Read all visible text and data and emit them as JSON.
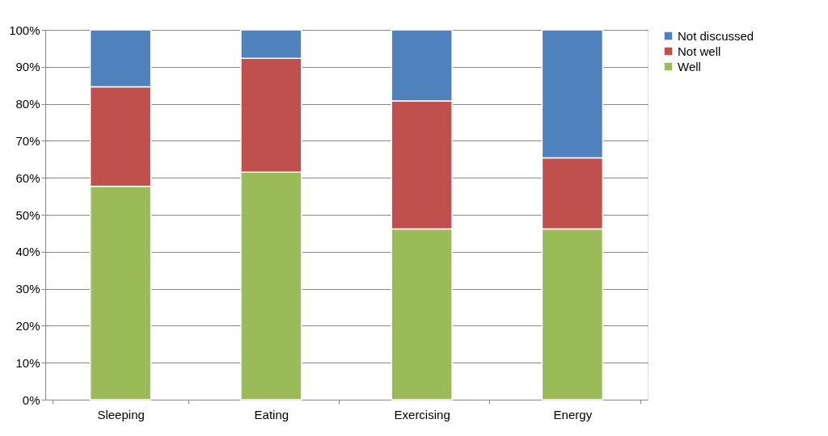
{
  "chart_data": {
    "type": "bar",
    "stacked": true,
    "categories": [
      "Sleeping",
      "Eating",
      "Exercising",
      "Energy"
    ],
    "series": [
      {
        "name": "Well",
        "color": "#9bbb59",
        "values": [
          57.7,
          61.5,
          46.2,
          46.2
        ]
      },
      {
        "name": "Not well",
        "color": "#c0504d",
        "values": [
          26.9,
          30.8,
          34.6,
          19.2
        ]
      },
      {
        "name": "Not discussed",
        "color": "#4f81bd",
        "values": [
          15.4,
          7.7,
          19.2,
          34.6
        ]
      }
    ],
    "ylim": [
      0,
      100
    ],
    "yticks": [
      {
        "value": 0,
        "label": "0%"
      },
      {
        "value": 10,
        "label": "10%"
      },
      {
        "value": 20,
        "label": "20%"
      },
      {
        "value": 30,
        "label": "30%"
      },
      {
        "value": 40,
        "label": "40%"
      },
      {
        "value": 50,
        "label": "50%"
      },
      {
        "value": 60,
        "label": "60%"
      },
      {
        "value": 70,
        "label": "70%"
      },
      {
        "value": 80,
        "label": "80%"
      },
      {
        "value": 90,
        "label": "90%"
      },
      {
        "value": 100,
        "label": "100%"
      }
    ],
    "grid": "y",
    "legend": "right"
  }
}
